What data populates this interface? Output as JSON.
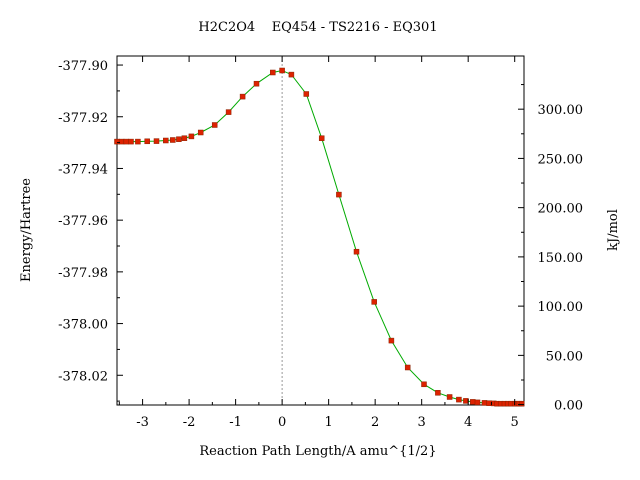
{
  "chart_data": {
    "type": "line",
    "title": "H2C2O4    EQ454 - TS2216 - EQ301",
    "xlabel": "Reaction Path Length/A amu^{1/2}",
    "ylabel": "Energy/Hartree",
    "y2label": "kJ/mol",
    "xlim": [
      -3.55,
      5.2
    ],
    "ylim": [
      -378.0315,
      -377.8965
    ],
    "y2lim": [
      -0.4,
      354.0
    ],
    "x_ticks": [
      -3,
      -2,
      -1,
      0,
      1,
      2,
      3,
      4,
      5
    ],
    "x_tick_labels": [
      "-3",
      "-2",
      "-1",
      "0",
      "1",
      "2",
      "3",
      "4",
      "5"
    ],
    "y_ticks": [
      -377.9,
      -377.92,
      -377.94,
      -377.96,
      -377.98,
      -378.0,
      -378.02
    ],
    "y_tick_labels": [
      "-377.90",
      "-377.92",
      "-377.94",
      "-377.96",
      "-377.98",
      "-378.00",
      "-378.02"
    ],
    "y2_ticks": [
      0,
      50,
      100,
      150,
      200,
      250,
      300
    ],
    "y2_tick_labels": [
      "0.00",
      "50.00",
      "100.00",
      "150.00",
      "200.00",
      "250.00",
      "300.00"
    ],
    "ts_marker_x": 0,
    "grid": false,
    "legend": false,
    "colors": {
      "line": "#00aa00",
      "marker": "#dd2200",
      "marker_edge": "#882200",
      "ts_line": "#999999"
    },
    "series": [
      {
        "x": [
          -3.55,
          -3.45,
          -3.35,
          -3.25,
          -3.1,
          -2.9,
          -2.7,
          -2.5,
          -2.35,
          -2.22,
          -2.1,
          -1.95,
          -1.75,
          -1.45,
          -1.15,
          -0.85,
          -0.55,
          -0.2,
          0.0,
          0.2,
          0.52,
          0.85,
          1.22,
          1.6,
          1.98,
          2.35,
          2.7,
          3.05,
          3.35,
          3.6,
          3.8,
          3.95,
          4.1,
          4.2,
          4.35,
          4.45,
          4.55,
          4.62,
          4.7,
          4.78,
          4.85,
          4.92,
          5.0,
          5.05,
          5.1,
          5.15
        ],
        "y": [
          -377.9296,
          -377.9296,
          -377.9296,
          -377.9296,
          -377.9296,
          -377.9295,
          -377.9294,
          -377.9292,
          -377.929,
          -377.9287,
          -377.9283,
          -377.9276,
          -377.9261,
          -377.9232,
          -377.9182,
          -377.9122,
          -377.9072,
          -377.9029,
          -377.9021,
          -377.9037,
          -377.9112,
          -377.9283,
          -377.9501,
          -377.9722,
          -377.9916,
          -378.0066,
          -378.017,
          -378.0235,
          -378.0268,
          -378.0284,
          -378.0294,
          -378.0299,
          -378.0303,
          -378.0305,
          -378.0307,
          -378.0308,
          -378.0309,
          -378.031,
          -378.031,
          -378.031,
          -378.031,
          -378.031,
          -378.031,
          -378.031,
          -378.031,
          -378.031
        ]
      }
    ]
  }
}
